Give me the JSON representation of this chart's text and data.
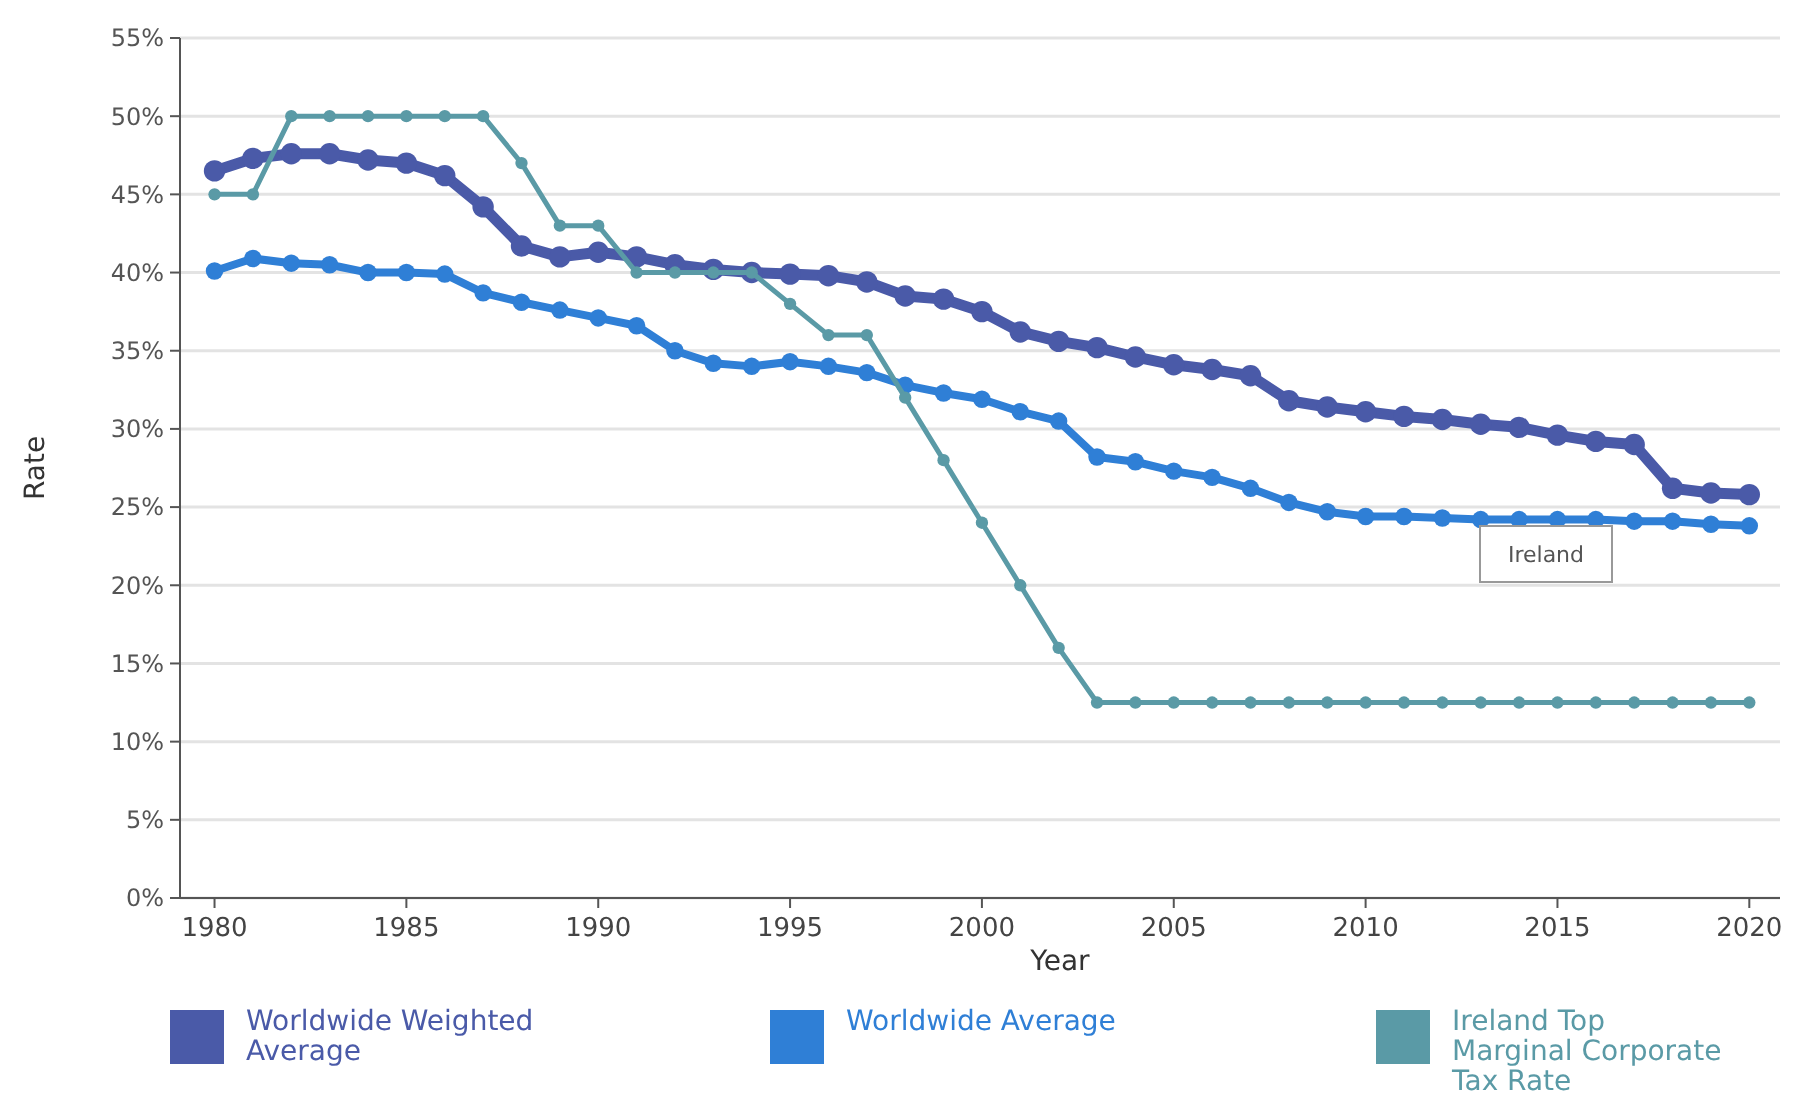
{
  "chart_data": {
    "type": "line",
    "xlabel": "Year",
    "ylabel": "Rate",
    "annotations": [
      "Ireland"
    ],
    "x": [
      1980,
      1981,
      1982,
      1983,
      1984,
      1985,
      1986,
      1987,
      1988,
      1989,
      1990,
      1991,
      1992,
      1993,
      1994,
      1995,
      1996,
      1997,
      1998,
      1999,
      2000,
      2001,
      2002,
      2003,
      2004,
      2005,
      2006,
      2007,
      2008,
      2009,
      2010,
      2011,
      2012,
      2013,
      2014,
      2015,
      2016,
      2017,
      2018,
      2019,
      2020
    ],
    "series": [
      {
        "name": "Worldwide Weighted Average",
        "color": "#4a5aa8",
        "values": [
          46.5,
          47.3,
          47.6,
          47.6,
          47.2,
          47.0,
          46.2,
          44.2,
          41.7,
          41.0,
          41.3,
          41.0,
          40.5,
          40.2,
          40.0,
          39.9,
          39.8,
          39.4,
          38.5,
          38.3,
          37.5,
          36.2,
          35.6,
          35.2,
          34.6,
          34.1,
          33.8,
          33.4,
          31.8,
          31.4,
          31.1,
          30.8,
          30.6,
          30.3,
          30.1,
          29.6,
          29.2,
          29.0,
          26.2,
          25.9,
          25.8
        ]
      },
      {
        "name": "Worldwide Average",
        "color": "#2f7fd6",
        "values": [
          40.1,
          40.9,
          40.6,
          40.5,
          40.0,
          40.0,
          39.9,
          38.7,
          38.1,
          37.6,
          37.1,
          36.6,
          35.0,
          34.2,
          34.0,
          34.3,
          34.0,
          33.6,
          32.8,
          32.3,
          31.9,
          31.1,
          30.5,
          28.2,
          27.9,
          27.3,
          26.9,
          26.2,
          25.3,
          24.7,
          24.4,
          24.4,
          24.3,
          24.2,
          24.2,
          24.2,
          24.2,
          24.1,
          24.1,
          23.9,
          23.8
        ]
      },
      {
        "name": "Ireland Top Marginal Corporate Tax Rate",
        "color": "#5a9aa6",
        "values": [
          45,
          45,
          50,
          50,
          50,
          50,
          50,
          50,
          47,
          43,
          43,
          40,
          40,
          40,
          40,
          38,
          36,
          36,
          32,
          28,
          24,
          20,
          16,
          12.5,
          12.5,
          12.5,
          12.5,
          12.5,
          12.5,
          12.5,
          12.5,
          12.5,
          12.5,
          12.5,
          12.5,
          12.5,
          12.5,
          12.5,
          12.5,
          12.5,
          12.5
        ]
      }
    ],
    "xlim": [
      1979.1,
      2020.8
    ],
    "xticks": [
      1980,
      1985,
      1990,
      1995,
      2000,
      2005,
      2010,
      2015,
      2020
    ],
    "ylim": [
      0,
      55
    ],
    "yticks": [
      {
        "value": 0,
        "label": "0%"
      },
      {
        "value": 5,
        "label": "5%"
      },
      {
        "value": 10,
        "label": "10%"
      },
      {
        "value": 15,
        "label": "15%"
      },
      {
        "value": 20,
        "label": "20%"
      },
      {
        "value": 25,
        "label": "25%"
      },
      {
        "value": 30,
        "label": "30%"
      },
      {
        "value": 35,
        "label": "35%"
      },
      {
        "value": 40,
        "label": "40%"
      },
      {
        "value": 45,
        "label": "45%"
      },
      {
        "value": 50,
        "label": "50%"
      },
      {
        "value": 55,
        "label": "55%"
      }
    ],
    "grid": "y",
    "legend": "bottom",
    "marker": "circle",
    "line_style": "solid"
  }
}
